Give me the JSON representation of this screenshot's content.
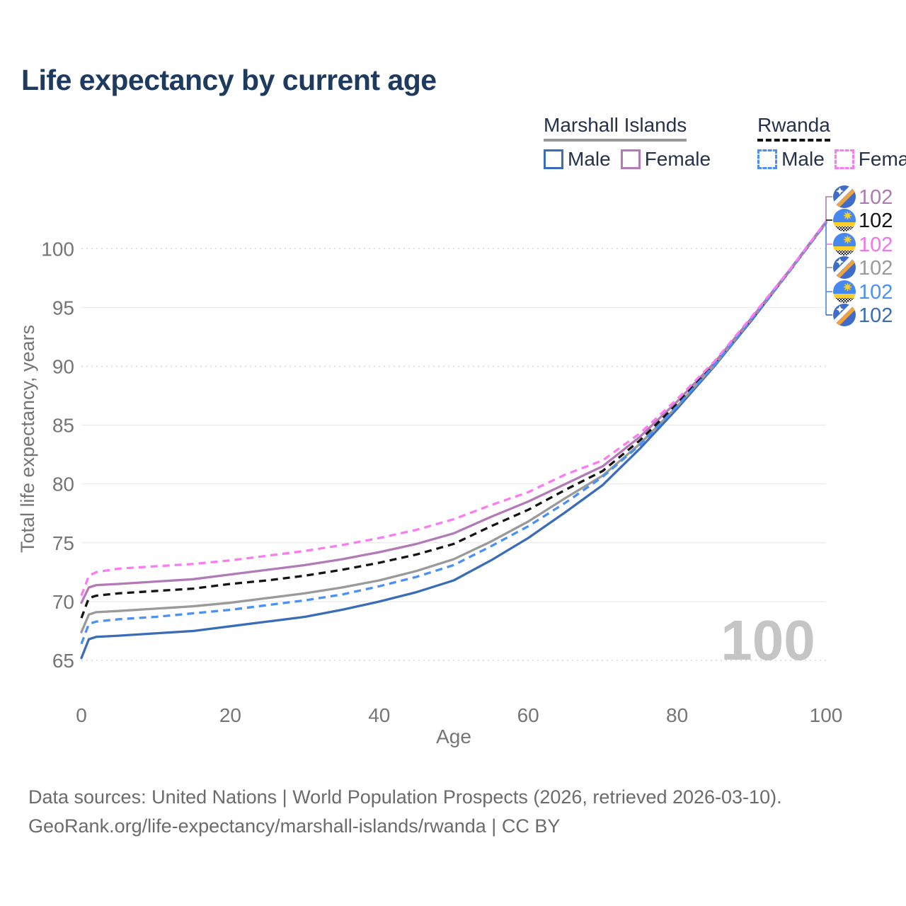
{
  "title": "Life expectancy by current age",
  "watermark": "100",
  "legend": {
    "groups": [
      {
        "name": "Marshall Islands",
        "underline": "solid",
        "underline_color": "#9a9a9a",
        "items": [
          {
            "label": "Male",
            "color": "#3a6cb8",
            "dashed": false
          },
          {
            "label": "Female",
            "color": "#b27ab6",
            "dashed": false
          }
        ]
      },
      {
        "name": "Rwanda",
        "underline": "dashed",
        "underline_color": "#141414",
        "items": [
          {
            "label": "Male",
            "color": "#4a90f5",
            "dashed": true
          },
          {
            "label": "Female",
            "color": "#fb7cf0",
            "dashed": true
          }
        ]
      }
    ]
  },
  "chart_data": {
    "type": "line",
    "title": "Life expectancy by current age",
    "xlabel": "Age",
    "ylabel": "Total life expectancy, years",
    "xlim": [
      0,
      100
    ],
    "ylim": [
      63.5,
      103.5
    ],
    "xticks": [
      0,
      20,
      40,
      60,
      80,
      100
    ],
    "yticks": [
      65,
      70,
      75,
      80,
      85,
      90,
      95,
      100
    ],
    "dotted_gridlines": [
      65,
      90,
      100
    ],
    "grid": true,
    "legend_position": "top-right",
    "x": [
      0,
      1,
      2,
      5,
      10,
      15,
      20,
      25,
      30,
      35,
      40,
      45,
      50,
      55,
      60,
      65,
      70,
      75,
      80,
      85,
      90,
      95,
      100
    ],
    "series": [
      {
        "name": "Marshall Islands Male",
        "country": "marshall-islands",
        "sex": "male",
        "color": "#3a6cb8",
        "dash": "solid",
        "values": [
          65.2,
          66.8,
          67.0,
          67.1,
          67.3,
          67.5,
          67.9,
          68.3,
          68.7,
          69.3,
          70.0,
          70.8,
          71.8,
          73.5,
          75.4,
          77.6,
          79.9,
          83.0,
          86.4,
          90.0,
          93.9,
          98.0,
          102.2
        ]
      },
      {
        "name": "Marshall Islands Both sexes",
        "country": "marshall-islands",
        "sex": "both",
        "color": "#9a9a9a",
        "dash": "solid",
        "values": [
          67.4,
          68.9,
          69.1,
          69.2,
          69.4,
          69.6,
          69.9,
          70.3,
          70.7,
          71.2,
          71.8,
          72.6,
          73.6,
          75.1,
          76.8,
          78.8,
          80.7,
          83.4,
          86.6,
          90.1,
          94.0,
          98.0,
          102.2
        ]
      },
      {
        "name": "Marshall Islands Female",
        "country": "marshall-islands",
        "sex": "female",
        "color": "#b27ab6",
        "dash": "solid",
        "values": [
          69.9,
          71.2,
          71.4,
          71.5,
          71.7,
          71.9,
          72.3,
          72.7,
          73.1,
          73.6,
          74.2,
          74.9,
          75.8,
          77.2,
          78.5,
          80.0,
          81.5,
          84.0,
          87.0,
          90.3,
          94.1,
          98.1,
          102.3
        ]
      },
      {
        "name": "Rwanda Both sexes",
        "country": "rwanda",
        "sex": "both",
        "color": "#141414",
        "dash": "dashed",
        "values": [
          68.6,
          70.3,
          70.5,
          70.7,
          70.9,
          71.1,
          71.5,
          71.8,
          72.2,
          72.7,
          73.3,
          74.0,
          74.9,
          76.4,
          77.8,
          79.5,
          81.1,
          83.7,
          86.8,
          90.2,
          94.0,
          98.0,
          102.2
        ]
      },
      {
        "name": "Rwanda Male",
        "country": "rwanda",
        "sex": "male",
        "color": "#4a90f5",
        "dash": "dashed",
        "values": [
          66.4,
          68.1,
          68.3,
          68.5,
          68.7,
          69.0,
          69.3,
          69.7,
          70.1,
          70.6,
          71.3,
          72.1,
          73.1,
          74.7,
          76.4,
          78.4,
          80.6,
          83.3,
          86.6,
          90.1,
          94.0,
          98.0,
          102.2
        ]
      },
      {
        "name": "Rwanda Female",
        "country": "rwanda",
        "sex": "female",
        "color": "#fb7cf0",
        "dash": "dashed",
        "values": [
          70.5,
          72.2,
          72.5,
          72.8,
          73.0,
          73.2,
          73.5,
          73.9,
          74.3,
          74.8,
          75.4,
          76.1,
          77.0,
          78.2,
          79.3,
          80.8,
          82.0,
          84.3,
          87.2,
          90.4,
          94.2,
          98.1,
          102.3
        ]
      }
    ],
    "end_labels": [
      {
        "value": "102",
        "flag": "marshall-islands",
        "text_color": "#ab7bb0",
        "series": "Marshall Islands Female"
      },
      {
        "value": "102",
        "flag": "rwanda",
        "text_color": "#141414",
        "series": "Rwanda Both sexes"
      },
      {
        "value": "102",
        "flag": "rwanda",
        "text_color": "#f573ee",
        "series": "Rwanda Female"
      },
      {
        "value": "102",
        "flag": "marshall-islands",
        "text_color": "#9a9a9a",
        "series": "Marshall Islands Both sexes"
      },
      {
        "value": "102",
        "flag": "rwanda",
        "text_color": "#4a90f5",
        "series": "Rwanda Male"
      },
      {
        "value": "102",
        "flag": "marshall-islands",
        "text_color": "#3a6cb8",
        "series": "Marshall Islands Male"
      }
    ]
  },
  "footer": {
    "line1": "Data sources: United Nations | World Population Prospects (2026, retrieved 2026-03-10).",
    "line2": "GeoRank.org/life-expectancy/marshall-islands/rwanda | CC BY"
  }
}
